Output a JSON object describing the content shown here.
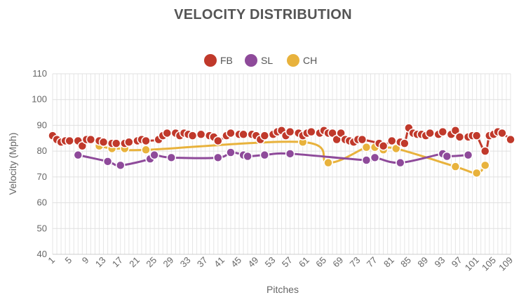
{
  "chart_data": {
    "type": "line",
    "title": "VELOCITY DISTRIBUTION",
    "xlabel": "Pitches",
    "ylabel": "Velocity (Mph)",
    "ylim": [
      40,
      110
    ],
    "yticks": [
      40,
      50,
      60,
      70,
      80,
      90,
      100,
      110
    ],
    "xlim": [
      1,
      109
    ],
    "xticks": [
      1,
      5,
      9,
      13,
      17,
      21,
      25,
      29,
      33,
      37,
      41,
      45,
      49,
      53,
      57,
      61,
      65,
      69,
      73,
      77,
      81,
      85,
      89,
      93,
      97,
      101,
      105,
      109
    ],
    "grid": true,
    "legend_position": "top-center",
    "series": [
      {
        "name": "FB",
        "color": "#c0392b",
        "points": [
          [
            1,
            86
          ],
          [
            2,
            84.5
          ],
          [
            3,
            83.5
          ],
          [
            4,
            84
          ],
          [
            5,
            84
          ],
          [
            7,
            84
          ],
          [
            8,
            82
          ],
          [
            9,
            84.5
          ],
          [
            10,
            84.5
          ],
          [
            12,
            84
          ],
          [
            13,
            83.5
          ],
          [
            15,
            83
          ],
          [
            16,
            83
          ],
          [
            18,
            83
          ],
          [
            19,
            83.5
          ],
          [
            21,
            84
          ],
          [
            22,
            84.5
          ],
          [
            23,
            84
          ],
          [
            26,
            84.5
          ],
          [
            27,
            86
          ],
          [
            28,
            87
          ],
          [
            30,
            87
          ],
          [
            31,
            86
          ],
          [
            32,
            87
          ],
          [
            33,
            86.5
          ],
          [
            34,
            86
          ],
          [
            36,
            86.5
          ],
          [
            38,
            86
          ],
          [
            39,
            85.5
          ],
          [
            40,
            84
          ],
          [
            42,
            86
          ],
          [
            43,
            87
          ],
          [
            45,
            86.5
          ],
          [
            46,
            86.5
          ],
          [
            48,
            86.5
          ],
          [
            49,
            86
          ],
          [
            50,
            84.5
          ],
          [
            51,
            86
          ],
          [
            53,
            86.5
          ],
          [
            54,
            87.5
          ],
          [
            55,
            88
          ],
          [
            56,
            86
          ],
          [
            57,
            87.5
          ],
          [
            59,
            87
          ],
          [
            60,
            86
          ],
          [
            61,
            87
          ],
          [
            62,
            87.5
          ],
          [
            64,
            87
          ],
          [
            65,
            88
          ],
          [
            66,
            87
          ],
          [
            67,
            87
          ],
          [
            68,
            84.5
          ],
          [
            69,
            87
          ],
          [
            70,
            84.5
          ],
          [
            71,
            84
          ],
          [
            72,
            83.5
          ],
          [
            73,
            84.5
          ],
          [
            74,
            84.5
          ],
          [
            78,
            83
          ],
          [
            79,
            82
          ],
          [
            81,
            84
          ],
          [
            83,
            83.5
          ],
          [
            84,
            83
          ],
          [
            85,
            89
          ],
          [
            86,
            87
          ],
          [
            87,
            86.5
          ],
          [
            88,
            86.5
          ],
          [
            89,
            86
          ],
          [
            90,
            87
          ],
          [
            92,
            86.5
          ],
          [
            93,
            87.5
          ],
          [
            95,
            86.5
          ],
          [
            96,
            88
          ],
          [
            97,
            85.5
          ],
          [
            99,
            85.5
          ],
          [
            100,
            86
          ],
          [
            101,
            86
          ],
          [
            103,
            80
          ],
          [
            104,
            86
          ],
          [
            105,
            86.5
          ],
          [
            106,
            87.5
          ],
          [
            107,
            87
          ],
          [
            109,
            84.5
          ]
        ]
      },
      {
        "name": "SL",
        "color": "#8e4a9a",
        "points": [
          [
            7,
            78.5
          ],
          [
            14,
            76
          ],
          [
            17,
            74.5
          ],
          [
            24,
            77
          ],
          [
            25,
            78.5
          ],
          [
            29,
            77.5
          ],
          [
            40,
            77.5
          ],
          [
            43,
            79.5
          ],
          [
            46,
            78.5
          ],
          [
            47,
            78
          ],
          [
            51,
            78.5
          ],
          [
            57,
            79
          ],
          [
            75,
            76.5
          ],
          [
            77,
            77.5
          ],
          [
            83,
            75.5
          ],
          [
            93,
            79
          ],
          [
            94,
            78
          ],
          [
            99,
            78.5
          ]
        ]
      },
      {
        "name": "CH",
        "color": "#e8b23c",
        "points": [
          [
            12,
            82
          ],
          [
            15,
            81
          ],
          [
            18,
            81
          ],
          [
            23,
            80.5
          ],
          [
            60,
            83.5
          ],
          [
            66,
            75.5
          ],
          [
            75,
            81.5
          ],
          [
            77,
            81.5
          ],
          [
            79,
            80.5
          ],
          [
            82,
            81
          ],
          [
            96,
            74
          ],
          [
            101,
            71.5
          ],
          [
            103,
            74.5
          ]
        ]
      }
    ]
  }
}
